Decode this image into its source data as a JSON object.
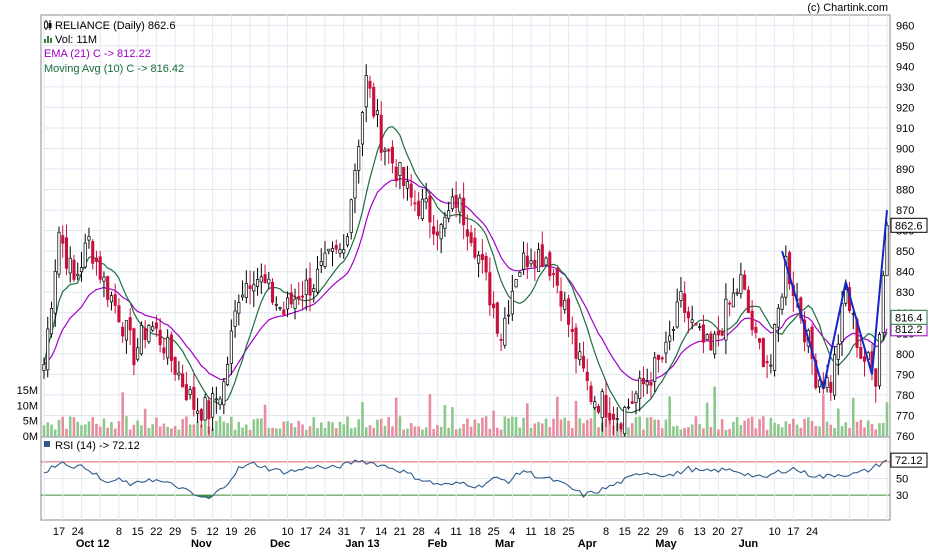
{
  "chart_data": {
    "type": "candlestick",
    "credit": "(c) Chartink.com",
    "price_panel": {
      "legend": [
        {
          "text": "RELIANCE (Daily) 862.6",
          "color": "#000000",
          "marker": "candle-icon"
        },
        {
          "text": "Vol: 11M",
          "color": "#000000",
          "marker": "volume-icon"
        },
        {
          "text": "EMA (21) C -> 812.22",
          "color": "#a000c8"
        },
        {
          "text": "Moving Avg (10) C -> 816.42",
          "color": "#1e6e3c"
        }
      ],
      "y_ticks": [
        760,
        770,
        780,
        790,
        800,
        810,
        820,
        830,
        840,
        850,
        860,
        870,
        880,
        890,
        900,
        910,
        920,
        930,
        940,
        950,
        960
      ],
      "ylim": [
        760,
        965
      ],
      "last_price_label": "862.6",
      "ma_label": "816.4",
      "ema_label": "812.2",
      "volume_ticks": [
        "0M",
        "5M",
        "10M",
        "15M"
      ],
      "close_anchors": [
        [
          0,
          795
        ],
        [
          4,
          860
        ],
        [
          8,
          835
        ],
        [
          12,
          855
        ],
        [
          16,
          835
        ],
        [
          20,
          820
        ],
        [
          24,
          800
        ],
        [
          28,
          815
        ],
        [
          32,
          805
        ],
        [
          36,
          790
        ],
        [
          40,
          775
        ],
        [
          44,
          772
        ],
        [
          48,
          785
        ],
        [
          52,
          830
        ],
        [
          56,
          840
        ],
        [
          60,
          830
        ],
        [
          64,
          820
        ],
        [
          68,
          830
        ],
        [
          72,
          835
        ],
        [
          76,
          845
        ],
        [
          80,
          850
        ],
        [
          84,
          905
        ],
        [
          86,
          933
        ],
        [
          90,
          905
        ],
        [
          94,
          890
        ],
        [
          98,
          875
        ],
        [
          102,
          870
        ],
        [
          106,
          860
        ],
        [
          110,
          875
        ],
        [
          114,
          860
        ],
        [
          118,
          835
        ],
        [
          122,
          810
        ],
        [
          126,
          840
        ],
        [
          130,
          850
        ],
        [
          134,
          848
        ],
        [
          138,
          830
        ],
        [
          142,
          800
        ],
        [
          146,
          780
        ],
        [
          150,
          775
        ],
        [
          154,
          770
        ],
        [
          158,
          780
        ],
        [
          162,
          790
        ],
        [
          166,
          800
        ],
        [
          170,
          825
        ],
        [
          174,
          810
        ],
        [
          178,
          800
        ],
        [
          182,
          820
        ],
        [
          186,
          835
        ],
        [
          190,
          805
        ],
        [
          194,
          795
        ],
        [
          198,
          845
        ],
        [
          202,
          820
        ],
        [
          206,
          790
        ],
        [
          210,
          785
        ],
        [
          214,
          830
        ],
        [
          218,
          800
        ],
        [
          222,
          790
        ],
        [
          225,
          862.6
        ]
      ]
    },
    "volume": {
      "unit": "M",
      "last": 11
    },
    "x_axis": {
      "day_labels": [
        "17",
        "24",
        "8",
        "15",
        "22",
        "29",
        "5",
        "12",
        "19",
        "26",
        "10",
        "17",
        "24",
        "31",
        "7",
        "14",
        "21",
        "28",
        "4",
        "11",
        "18",
        "25",
        "4",
        "11",
        "18",
        "25",
        "8",
        "15",
        "22",
        "29",
        "6",
        "13",
        "20",
        "27",
        "10",
        "17",
        "24"
      ],
      "day_index": [
        4,
        9,
        20,
        25,
        30,
        35,
        40,
        45,
        50,
        55,
        65,
        70,
        75,
        80,
        85,
        90,
        95,
        100,
        105,
        110,
        115,
        120,
        125,
        130,
        135,
        140,
        150,
        155,
        160,
        165,
        170,
        175,
        180,
        185,
        195,
        200,
        205
      ],
      "month_labels": [
        "Oct 12",
        "Nov",
        "Dec",
        "Jan 13",
        "Feb",
        "Mar",
        "Apr",
        "May",
        "Jun"
      ],
      "month_index": [
        13,
        42,
        63,
        85,
        105,
        123,
        145,
        166,
        188
      ]
    },
    "rsi_panel": {
      "legend": "RSI (14) -> 72.12",
      "color": "#305a8c",
      "y_ticks": [
        30,
        50
      ],
      "overbought": 70,
      "oversold": 30,
      "last_value_label": "72.12",
      "anchors": [
        [
          0,
          55
        ],
        [
          4,
          70
        ],
        [
          8,
          65
        ],
        [
          12,
          62
        ],
        [
          16,
          45
        ],
        [
          20,
          48
        ],
        [
          24,
          42
        ],
        [
          28,
          50
        ],
        [
          32,
          45
        ],
        [
          36,
          40
        ],
        [
          40,
          30
        ],
        [
          44,
          25
        ],
        [
          48,
          40
        ],
        [
          52,
          62
        ],
        [
          56,
          68
        ],
        [
          60,
          62
        ],
        [
          64,
          58
        ],
        [
          68,
          60
        ],
        [
          72,
          65
        ],
        [
          76,
          62
        ],
        [
          80,
          66
        ],
        [
          84,
          72
        ],
        [
          88,
          68
        ],
        [
          92,
          64
        ],
        [
          96,
          58
        ],
        [
          100,
          50
        ],
        [
          104,
          44
        ],
        [
          108,
          42
        ],
        [
          112,
          45
        ],
        [
          116,
          40
        ],
        [
          120,
          50
        ],
        [
          124,
          47
        ],
        [
          128,
          60
        ],
        [
          132,
          52
        ],
        [
          136,
          48
        ],
        [
          140,
          40
        ],
        [
          144,
          30
        ],
        [
          148,
          35
        ],
        [
          152,
          42
        ],
        [
          156,
          50
        ],
        [
          160,
          58
        ],
        [
          164,
          55
        ],
        [
          168,
          54
        ],
        [
          172,
          62
        ],
        [
          176,
          58
        ],
        [
          180,
          60
        ],
        [
          184,
          60
        ],
        [
          188,
          55
        ],
        [
          192,
          50
        ],
        [
          196,
          58
        ],
        [
          200,
          62
        ],
        [
          204,
          55
        ],
        [
          208,
          52
        ],
        [
          212,
          55
        ],
        [
          216,
          55
        ],
        [
          220,
          60
        ],
        [
          225,
          72.12
        ]
      ]
    }
  }
}
